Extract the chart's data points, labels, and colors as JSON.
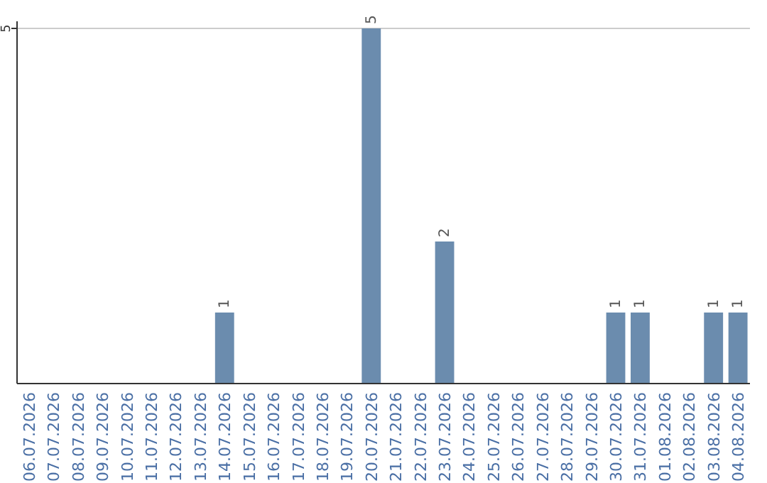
{
  "chart_data": {
    "type": "bar",
    "categories": [
      "06.07.2026",
      "07.07.2026",
      "08.07.2026",
      "09.07.2026",
      "10.07.2026",
      "11.07.2026",
      "12.07.2026",
      "13.07.2026",
      "14.07.2026",
      "15.07.2026",
      "16.07.2026",
      "17.07.2026",
      "18.07.2026",
      "19.07.2026",
      "20.07.2026",
      "21.07.2026",
      "22.07.2026",
      "23.07.2026",
      "24.07.2026",
      "25.07.2026",
      "26.07.2026",
      "27.07.2026",
      "28.07.2026",
      "29.07.2026",
      "30.07.2026",
      "31.07.2026",
      "01.08.2026",
      "02.08.2026",
      "03.08.2026",
      "04.08.2026"
    ],
    "values": [
      null,
      null,
      null,
      null,
      null,
      null,
      null,
      null,
      1,
      null,
      null,
      null,
      null,
      null,
      5,
      null,
      null,
      2,
      null,
      null,
      null,
      null,
      null,
      null,
      1,
      1,
      null,
      null,
      1,
      1
    ],
    "color": "#6b8cae",
    "ylim": [
      0,
      5.1
    ],
    "yticks": [
      5
    ],
    "grid": "y",
    "data_labels": true
  }
}
